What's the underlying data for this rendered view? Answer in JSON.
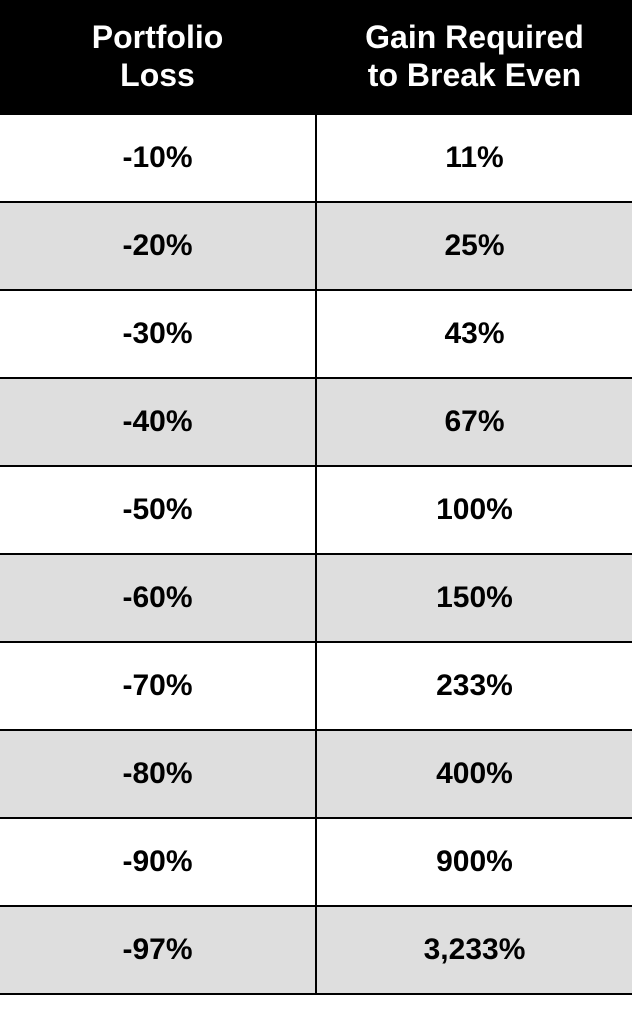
{
  "table": {
    "type": "table",
    "header_bg": "#000000",
    "header_fg": "#ffffff",
    "row_bg": "#ffffff",
    "row_alt_bg": "#dedede",
    "border_color": "#000000",
    "header_fontsize": 32,
    "cell_fontsize": 30,
    "font_weight": 700,
    "columns": [
      {
        "label_line1": "Portfolio",
        "label_line2": "Loss",
        "align": "center",
        "width_pct": 50
      },
      {
        "label_line1": "Gain Required",
        "label_line2": "to Break Even",
        "align": "center",
        "width_pct": 50
      }
    ],
    "rows": [
      {
        "loss": "-10%",
        "gain": "11%"
      },
      {
        "loss": "-20%",
        "gain": "25%"
      },
      {
        "loss": "-30%",
        "gain": "43%"
      },
      {
        "loss": "-40%",
        "gain": "67%"
      },
      {
        "loss": "-50%",
        "gain": "100%"
      },
      {
        "loss": "-60%",
        "gain": "150%"
      },
      {
        "loss": "-70%",
        "gain": "233%"
      },
      {
        "loss": "-80%",
        "gain": "400%"
      },
      {
        "loss": "-90%",
        "gain": "900%"
      },
      {
        "loss": "-97%",
        "gain": "3,233%"
      }
    ]
  }
}
